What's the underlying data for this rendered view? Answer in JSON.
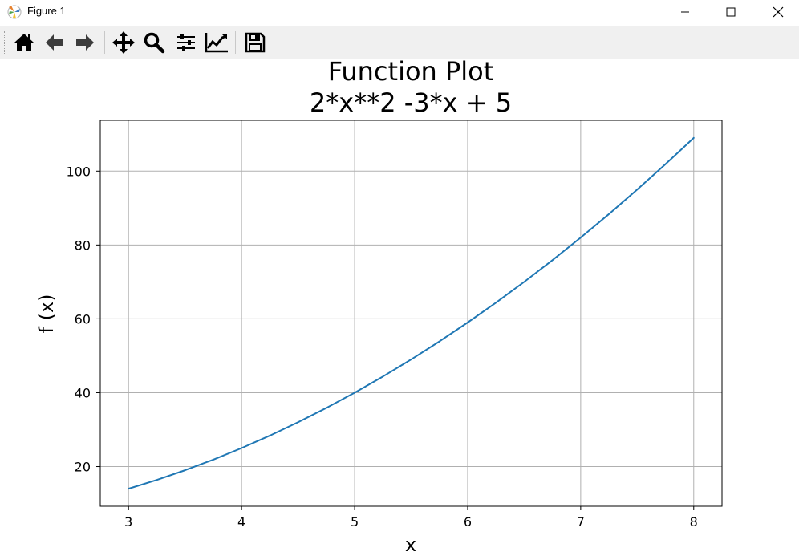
{
  "window": {
    "title": "Figure 1"
  },
  "toolbar": {
    "tools": [
      "home-icon",
      "back-arrow-icon",
      "forward-arrow-icon",
      "pan-icon",
      "zoom-icon",
      "configure-subplots-icon",
      "edit-axes-icon",
      "save-icon"
    ]
  },
  "chart_data": {
    "type": "line",
    "title": "Function Plot",
    "subtitle": "2*x**2 -3*x + 5",
    "xlabel": "x",
    "ylabel": "f (x)",
    "xlim": [
      2.75,
      8.25
    ],
    "ylim": [
      9.25,
      113.75
    ],
    "grid": true,
    "xticks": [
      3,
      4,
      5,
      6,
      7,
      8
    ],
    "yticks": [
      20,
      40,
      60,
      80,
      100
    ],
    "line_color": "#1f77b4",
    "series": [
      {
        "x": [
          3,
          3.25,
          3.5,
          3.75,
          4,
          4.25,
          4.5,
          4.75,
          5,
          5.25,
          5.5,
          5.75,
          6,
          6.25,
          6.5,
          6.75,
          7,
          7.25,
          7.5,
          7.75,
          8
        ],
        "values": [
          14,
          16.375,
          19,
          21.875,
          25,
          28.375,
          32,
          35.875,
          40,
          44.375,
          49,
          53.875,
          59,
          64.375,
          70,
          75.875,
          82,
          88.375,
          95,
          101.875,
          109
        ]
      }
    ]
  }
}
